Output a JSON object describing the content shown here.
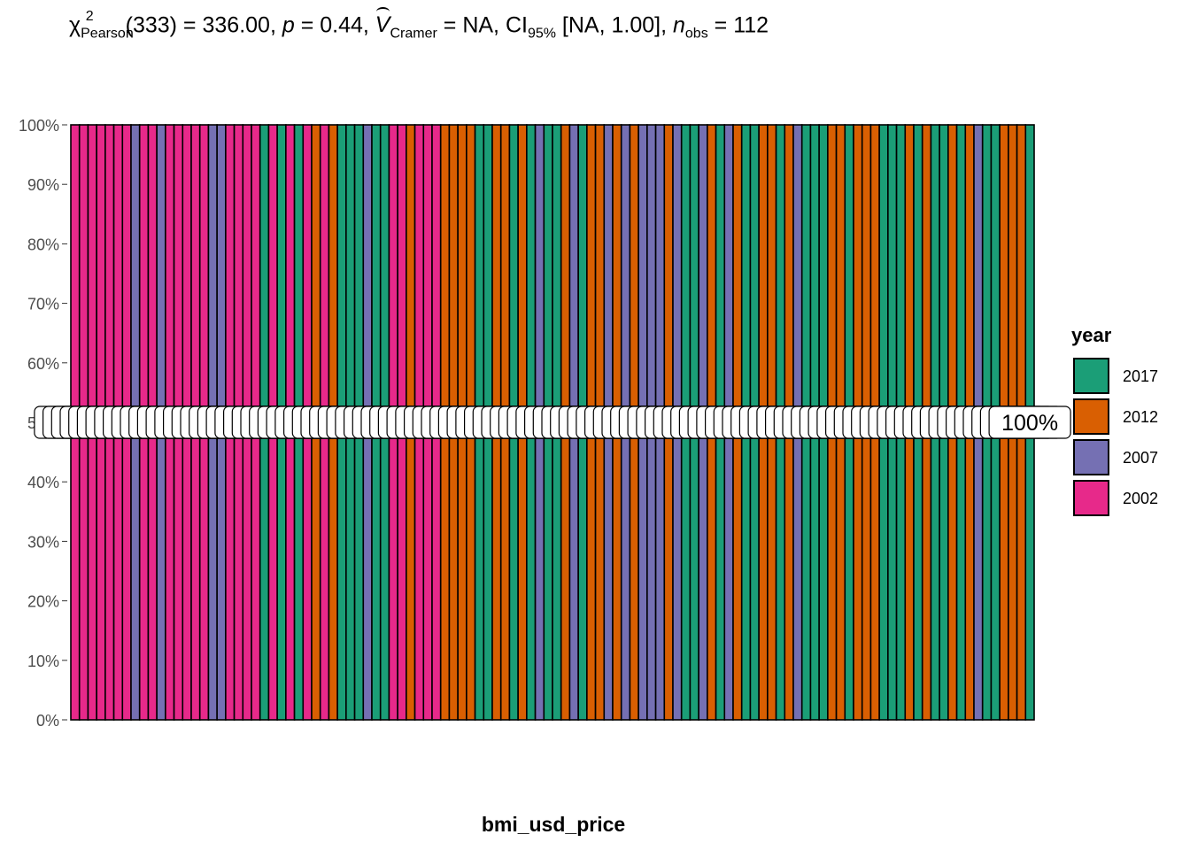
{
  "subtitle": {
    "chi": "χ",
    "chi_sup": "2",
    "chi_sub": "Pearson",
    "df_part": "(333) = 336.00, ",
    "p_sym": "p",
    "p_part": " = 0.44, ",
    "v_sym": "V",
    "v_sub": "Cramer",
    "v_part": " = NA, CI",
    "ci_sub": "95%",
    "ci_part": " [NA, 1.00], ",
    "n_sym": "n",
    "n_sub": "obs",
    "n_part": " = 112"
  },
  "colors": {
    "2017": "#1B9E77",
    "2012": "#D95F02",
    "2007": "#7570B3",
    "2002": "#E7298A"
  },
  "chart_data": {
    "type": "bar",
    "stacked": "percent",
    "xlabel": "bmi_usd_price",
    "ylabel": "",
    "ylim": [
      0,
      1
    ],
    "y_ticks": [
      "0%",
      "10%",
      "20%",
      "30%",
      "40%",
      "50%",
      "60%",
      "70%",
      "80%",
      "90%",
      "100%"
    ],
    "legend": {
      "title": "year",
      "position": "right",
      "entries": [
        "2017",
        "2012",
        "2007",
        "2002"
      ]
    },
    "bar_data_label": "100%",
    "series_by_bar": [
      "2002",
      "2002",
      "2002",
      "2002",
      "2002",
      "2002",
      "2002",
      "2007",
      "2002",
      "2002",
      "2007",
      "2002",
      "2002",
      "2002",
      "2002",
      "2002",
      "2007",
      "2007",
      "2002",
      "2002",
      "2002",
      "2002",
      "2017",
      "2002",
      "2017",
      "2002",
      "2017",
      "2002",
      "2012",
      "2002",
      "2012",
      "2017",
      "2017",
      "2017",
      "2007",
      "2017",
      "2017",
      "2002",
      "2002",
      "2012",
      "2002",
      "2002",
      "2002",
      "2012",
      "2012",
      "2012",
      "2012",
      "2017",
      "2017",
      "2012",
      "2012",
      "2017",
      "2012",
      "2017",
      "2007",
      "2017",
      "2017",
      "2012",
      "2007",
      "2017",
      "2012",
      "2012",
      "2007",
      "2012",
      "2007",
      "2012",
      "2007",
      "2007",
      "2007",
      "2012",
      "2007",
      "2017",
      "2017",
      "2007",
      "2012",
      "2017",
      "2007",
      "2012",
      "2017",
      "2017",
      "2012",
      "2012",
      "2017",
      "2012",
      "2007",
      "2017",
      "2017",
      "2017",
      "2012",
      "2012",
      "2017",
      "2012",
      "2012",
      "2012",
      "2017",
      "2017",
      "2017",
      "2012",
      "2017",
      "2012",
      "2017",
      "2017",
      "2012",
      "2017",
      "2012",
      "2007",
      "2017",
      "2017",
      "2012",
      "2012",
      "2012",
      "2017"
    ],
    "values": [
      1,
      1,
      1,
      1,
      1,
      1,
      1,
      1,
      1,
      1,
      1,
      1,
      1,
      1,
      1,
      1,
      1,
      1,
      1,
      1,
      1,
      1,
      1,
      1,
      1,
      1,
      1,
      1,
      1,
      1,
      1,
      1,
      1,
      1,
      1,
      1,
      1,
      1,
      1,
      1,
      1,
      1,
      1,
      1,
      1,
      1,
      1,
      1,
      1,
      1,
      1,
      1,
      1,
      1,
      1,
      1,
      1,
      1,
      1,
      1,
      1,
      1,
      1,
      1,
      1,
      1,
      1,
      1,
      1,
      1,
      1,
      1,
      1,
      1,
      1,
      1,
      1,
      1,
      1,
      1,
      1,
      1,
      1,
      1,
      1,
      1,
      1,
      1,
      1,
      1,
      1,
      1,
      1,
      1,
      1,
      1,
      1,
      1,
      1,
      1,
      1,
      1,
      1,
      1,
      1,
      1,
      1,
      1,
      1,
      1,
      1,
      1
    ]
  }
}
